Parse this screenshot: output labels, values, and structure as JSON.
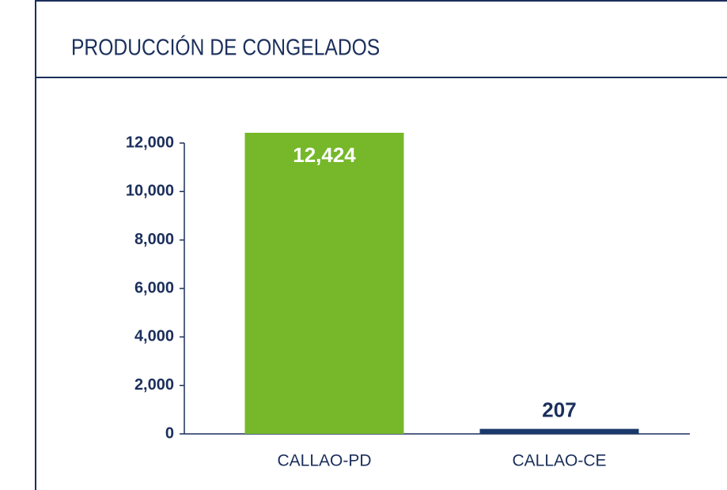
{
  "chart_data": {
    "type": "bar",
    "title": "PRODUCCIÓN DE CONGELADOS",
    "categories": [
      "CALLAO-PD",
      "CALLAO-CE"
    ],
    "values": [
      12424,
      207
    ],
    "value_labels": [
      "12,424",
      "207"
    ],
    "colors": [
      "#76b82a",
      "#1b3a6b"
    ],
    "ylim": [
      0,
      12000
    ],
    "yticks": [
      0,
      {
        "value": 2000,
        "label": "2,000"
      },
      {
        "value": 4000,
        "label": "4,000"
      },
      {
        "value": 6000,
        "label": "6,000"
      },
      {
        "value": 8000,
        "label": "8,000"
      },
      {
        "value": 10000,
        "label": "10,000"
      },
      {
        "value": 12000,
        "label": "12,000"
      }
    ]
  }
}
